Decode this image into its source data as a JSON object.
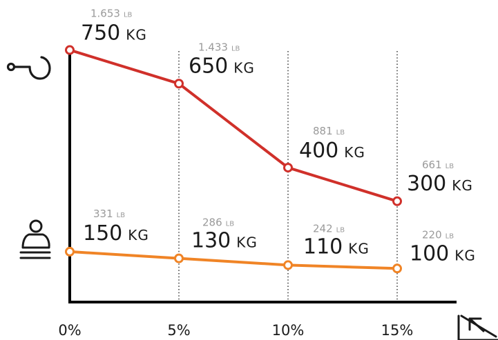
{
  "chart_data": {
    "type": "line",
    "title": "",
    "xlabel": "",
    "ylabel": "",
    "categories": [
      "0%",
      "5%",
      "10%",
      "15%"
    ],
    "ylim": [
      0,
      1500
    ],
    "grid": "vertical-dotted",
    "legend": "icons-left",
    "series": [
      {
        "icon": "tow-hitch-icon",
        "color": "#d0302a",
        "values": [
          750,
          650,
          400,
          300
        ],
        "kg_labels": [
          "750",
          "650",
          "400",
          "300"
        ],
        "lb_labels": [
          "1.653",
          "1.433",
          "881",
          "661"
        ]
      },
      {
        "icon": "seated-person-icon",
        "color": "#f08426",
        "values": [
          150,
          130,
          110,
          100
        ],
        "kg_labels": [
          "150",
          "130",
          "110",
          "100"
        ],
        "lb_labels": [
          "331",
          "286",
          "242",
          "220"
        ]
      }
    ],
    "units": {
      "kg": "KG",
      "lb": "LB"
    },
    "axis_icon": "incline-slope-icon"
  }
}
